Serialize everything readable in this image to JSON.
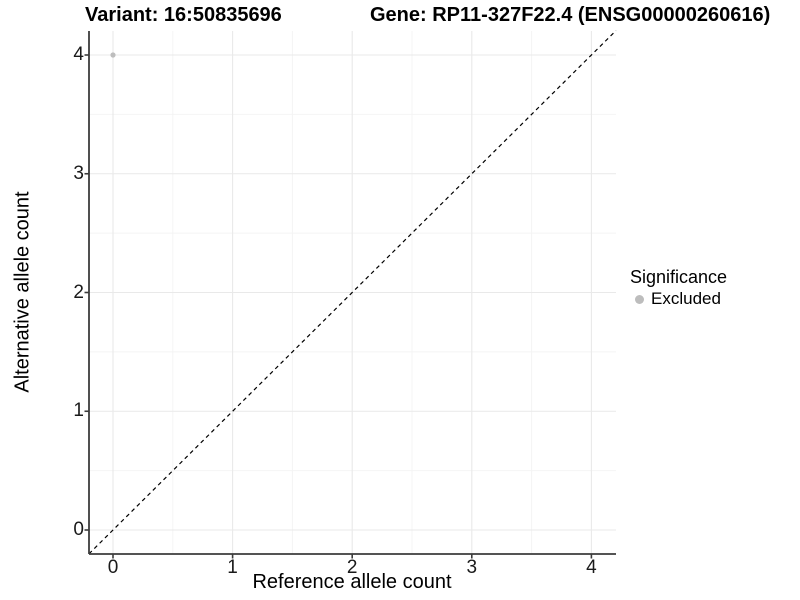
{
  "titles": {
    "variant": "Variant: 16:50835696",
    "gene": "Gene: RP11-327F22.4 (ENSG00000260616)"
  },
  "axes": {
    "x_label": "Reference allele count",
    "y_label": "Alternative allele count"
  },
  "legend": {
    "title": "Significance",
    "items": [
      {
        "label": "Excluded",
        "color": "#bdbdbd"
      }
    ]
  },
  "colors": {
    "background": "#ffffff",
    "grid_major": "#e9e9e9",
    "grid_minor": "#f4f4f4",
    "axis": "#3c3c3c",
    "tick": "#3c3c3c",
    "reference_line": "#000000",
    "point": "#bdbdbd",
    "text": "#000000"
  },
  "chart_data": {
    "type": "scatter",
    "title": "Variant: 16:50835696 — Gene: RP11-327F22.4 (ENSG00000260616)",
    "xlabel": "Reference allele count",
    "ylabel": "Alternative allele count",
    "xlim": [
      -0.2,
      4.2
    ],
    "ylim": [
      -0.2,
      4.2
    ],
    "x_ticks": [
      0,
      1,
      2,
      3,
      4
    ],
    "y_ticks": [
      0,
      1,
      2,
      3,
      4
    ],
    "grid": true,
    "legend_position": "right",
    "series": [
      {
        "name": "Excluded",
        "color": "#bdbdbd",
        "points": [
          {
            "x": 0,
            "y": 4
          }
        ]
      }
    ],
    "reference_line": {
      "style": "dashed",
      "slope": 1,
      "intercept": 0,
      "color": "#000000"
    }
  }
}
